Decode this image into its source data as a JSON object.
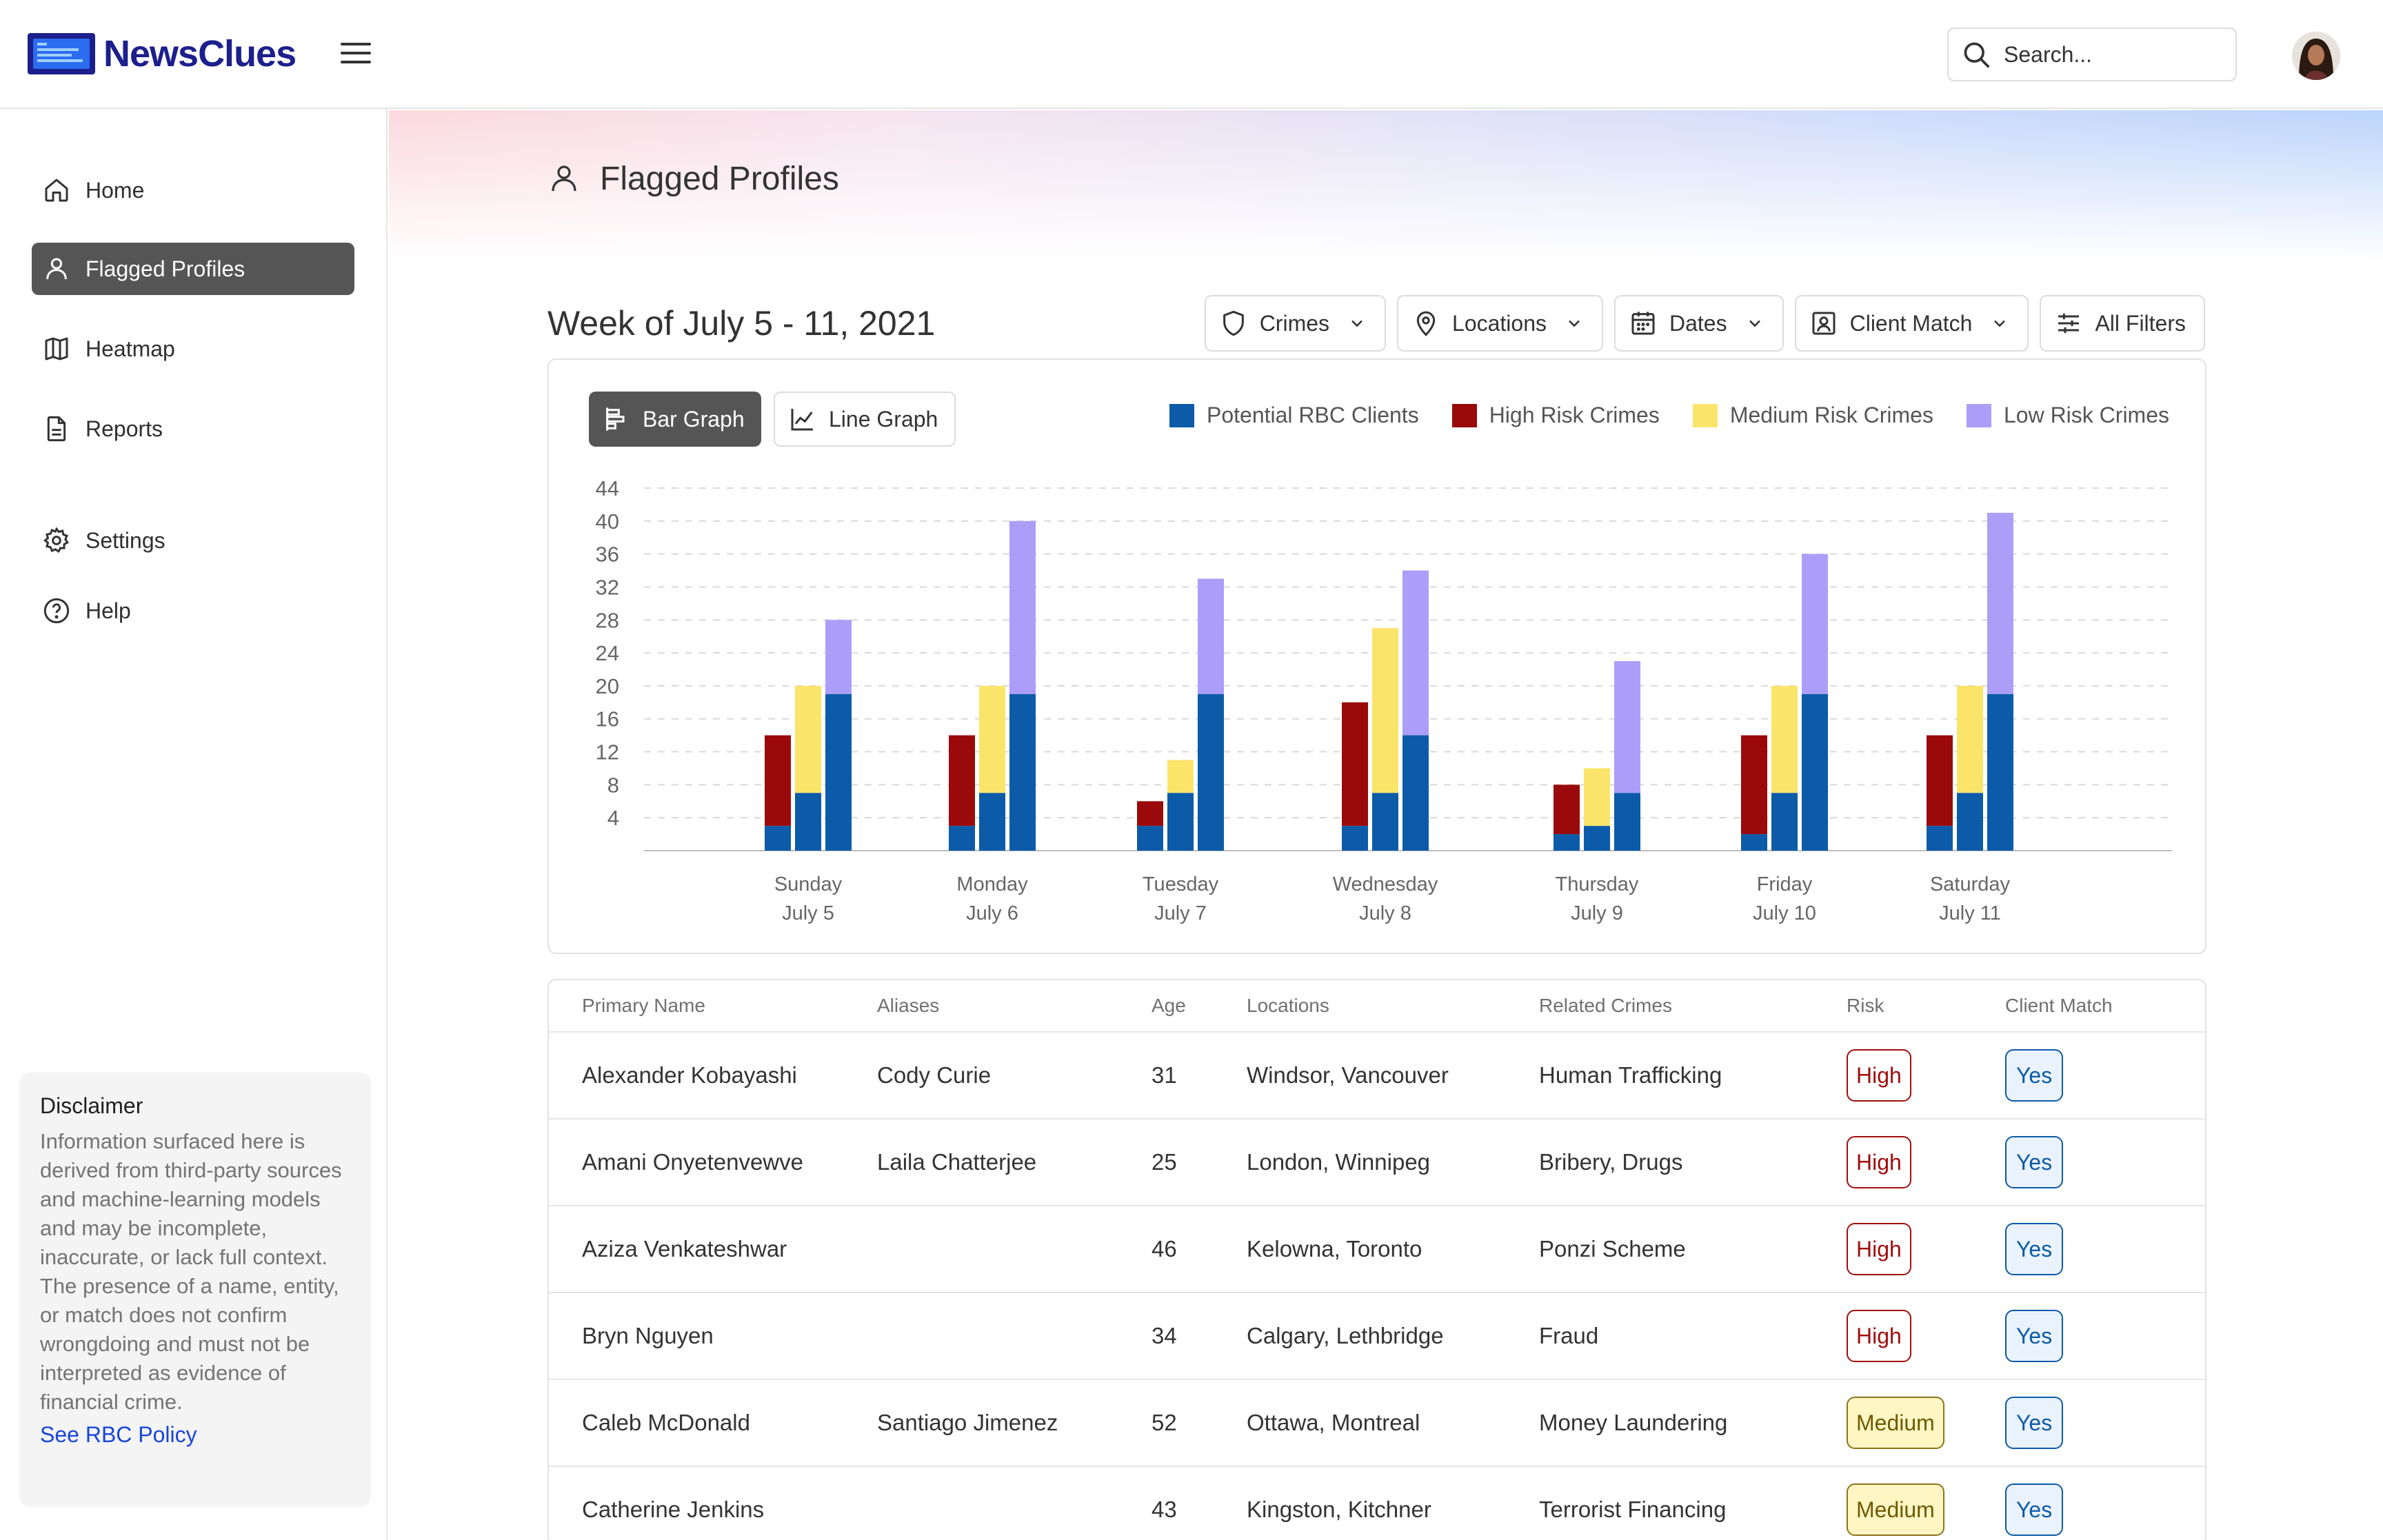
{
  "app": {
    "logo_text": "NewsClues",
    "search_placeholder": "Search..."
  },
  "sidebar": {
    "items": [
      {
        "label": "Home",
        "icon": "home-icon"
      },
      {
        "label": "Flagged Profiles",
        "icon": "user-icon",
        "active": true
      },
      {
        "label": "Heatmap",
        "icon": "map-icon"
      },
      {
        "label": "Reports",
        "icon": "document-icon"
      },
      {
        "label": "Settings",
        "icon": "gear-icon"
      },
      {
        "label": "Help",
        "icon": "help-icon"
      }
    ],
    "disclaimer": {
      "title": "Disclaimer",
      "text": "Information surfaced here is derived from third-party sources and machine-learning models and may be incomplete, inaccurate, or lack full context. The presence of a name, entity, or match does not confirm wrongdoing and must not be interpreted as evidence of financial crime.",
      "link": "See RBC Policy"
    }
  },
  "main": {
    "page_title": "Flagged Profiles",
    "week_title": "Week of July 5 - 11, 2021",
    "filters": [
      "Crimes",
      "Locations",
      "Dates",
      "Client Match",
      "All Filters"
    ],
    "toggle": {
      "bar": "Bar Graph",
      "line": "Line Graph"
    }
  },
  "chart_data": {
    "type": "bar",
    "categories": [
      [
        "Sunday",
        "July 5"
      ],
      [
        "Monday",
        "July 6"
      ],
      [
        "Tuesday",
        "July 7"
      ],
      [
        "Wednesday",
        "July 8"
      ],
      [
        "Thursday",
        "July 9"
      ],
      [
        "Friday",
        "July 10"
      ],
      [
        "Saturday",
        "July 11"
      ]
    ],
    "yticks": [
      4,
      8,
      12,
      16,
      20,
      24,
      28,
      32,
      36,
      40,
      44
    ],
    "ylim": [
      0,
      44
    ],
    "grid": true,
    "legend_position": "top-right",
    "series": [
      {
        "name": "High Risk Crimes",
        "color": "#9a0a0a",
        "values": [
          14,
          14,
          6,
          18,
          8,
          14,
          14
        ],
        "base": [
          3,
          3,
          3,
          3,
          2,
          2,
          3
        ]
      },
      {
        "name": "Medium Risk Crimes",
        "color": "#fbe46a",
        "values": [
          20,
          20,
          11,
          27,
          10,
          20,
          20
        ],
        "base": [
          7,
          7,
          7,
          7,
          3,
          7,
          7
        ]
      },
      {
        "name": "Low Risk Crimes",
        "color": "#ac9ef8",
        "values": [
          28,
          40,
          33,
          34,
          23,
          36,
          41
        ],
        "base": [
          19,
          19,
          19,
          14,
          7,
          19,
          19
        ]
      },
      {
        "name": "Potential RBC Clients",
        "color": "#0c5ba9"
      }
    ]
  },
  "table": {
    "headers": [
      "Primary Name",
      "Aliases",
      "Age",
      "Locations",
      "Related Crimes",
      "Risk",
      "Client Match"
    ],
    "rows": [
      {
        "name": "Alexander Kobayashi",
        "alias": "Cody Curie",
        "age": "31",
        "locations": "Windsor, Vancouver",
        "crimes": "Human Trafficking",
        "risk": "High",
        "match": "Yes"
      },
      {
        "name": "Amani Onyetenvewve",
        "alias": "Laila Chatterjee",
        "age": "25",
        "locations": "London, Winnipeg",
        "crimes": "Bribery, Drugs",
        "risk": "High",
        "match": "Yes"
      },
      {
        "name": "Aziza Venkateshwar",
        "alias": "",
        "age": "46",
        "locations": "Kelowna, Toronto",
        "crimes": "Ponzi Scheme",
        "risk": "High",
        "match": "Yes"
      },
      {
        "name": "Bryn Nguyen",
        "alias": "",
        "age": "34",
        "locations": "Calgary, Lethbridge",
        "crimes": "Fraud",
        "risk": "High",
        "match": "Yes"
      },
      {
        "name": "Caleb McDonald",
        "alias": "Santiago Jimenez",
        "age": "52",
        "locations": "Ottawa, Montreal",
        "crimes": "Money Laundering",
        "risk": "Medium",
        "match": "Yes"
      },
      {
        "name": "Catherine Jenkins",
        "alias": "",
        "age": "43",
        "locations": "Kingston, Kitchner",
        "crimes": "Terrorist Financing",
        "risk": "Medium",
        "match": "Yes"
      }
    ]
  }
}
